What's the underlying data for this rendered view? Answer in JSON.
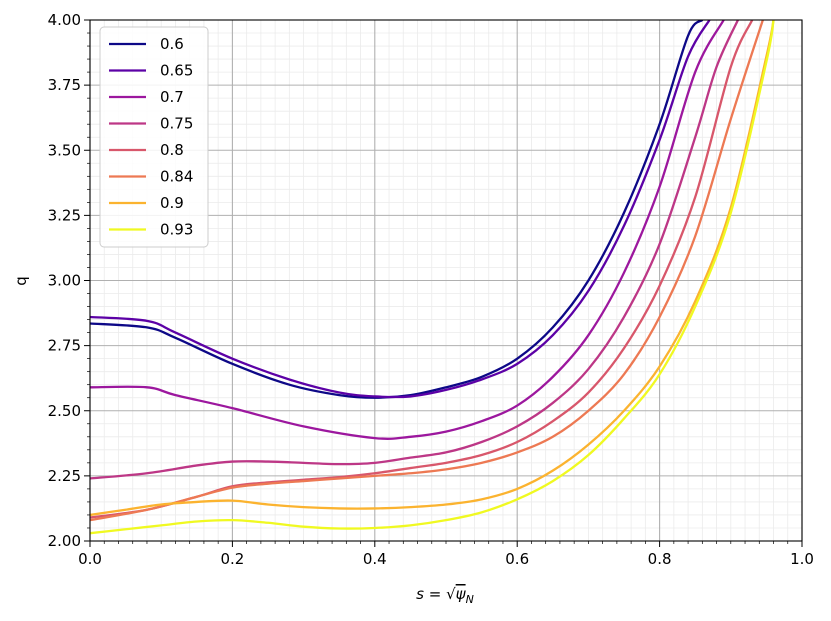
{
  "chart_data": {
    "type": "line",
    "xlabel": "s = √ψN",
    "xlabel_parts": {
      "s": "s",
      "eq": " = ",
      "root": "√",
      "psi": "ψ",
      "sub": "N"
    },
    "ylabel": "q",
    "xlim": [
      0.0,
      1.0
    ],
    "ylim": [
      2.0,
      4.0
    ],
    "x_ticks": [
      0.0,
      0.2,
      0.4,
      0.6,
      0.8,
      1.0
    ],
    "x_tick_labels": [
      "0.0",
      "0.2",
      "0.4",
      "0.6",
      "0.8",
      "1.0"
    ],
    "y_ticks": [
      2.0,
      2.25,
      2.5,
      2.75,
      3.0,
      3.25,
      3.5,
      3.75,
      4.0
    ],
    "y_tick_labels": [
      "2.00",
      "2.25",
      "2.50",
      "2.75",
      "3.00",
      "3.25",
      "3.50",
      "3.75",
      "4.00"
    ],
    "grid": "major and minor",
    "legend_position": "top-left",
    "series": [
      {
        "name": "0.6",
        "color": "#0d0887",
        "x": [
          0,
          0.08,
          0.12,
          0.2,
          0.28,
          0.35,
          0.4,
          0.45,
          0.5,
          0.55,
          0.6,
          0.65,
          0.7,
          0.75,
          0.8,
          0.84,
          0.86
        ],
        "y": [
          2.835,
          2.82,
          2.78,
          2.68,
          2.6,
          2.56,
          2.55,
          2.56,
          2.59,
          2.63,
          2.7,
          2.82,
          3.0,
          3.26,
          3.6,
          3.94,
          4.0
        ]
      },
      {
        "name": "0.65",
        "color": "#5c01a6",
        "x": [
          0,
          0.08,
          0.12,
          0.2,
          0.28,
          0.35,
          0.4,
          0.45,
          0.5,
          0.55,
          0.6,
          0.65,
          0.7,
          0.75,
          0.8,
          0.84,
          0.87
        ],
        "y": [
          2.86,
          2.845,
          2.8,
          2.7,
          2.62,
          2.57,
          2.555,
          2.555,
          2.58,
          2.62,
          2.68,
          2.79,
          2.96,
          3.21,
          3.54,
          3.86,
          4.0
        ]
      },
      {
        "name": "0.7",
        "color": "#9c179e",
        "x": [
          0,
          0.08,
          0.12,
          0.2,
          0.3,
          0.4,
          0.45,
          0.5,
          0.55,
          0.6,
          0.65,
          0.7,
          0.75,
          0.8,
          0.85,
          0.89
        ],
        "y": [
          2.59,
          2.59,
          2.56,
          2.51,
          2.44,
          2.395,
          2.4,
          2.42,
          2.46,
          2.52,
          2.63,
          2.79,
          3.03,
          3.36,
          3.8,
          4.0
        ]
      },
      {
        "name": "0.75",
        "color": "#bd3786",
        "x": [
          0,
          0.08,
          0.15,
          0.2,
          0.25,
          0.3,
          0.35,
          0.4,
          0.45,
          0.5,
          0.55,
          0.6,
          0.65,
          0.7,
          0.75,
          0.8,
          0.85,
          0.88,
          0.91
        ],
        "y": [
          2.24,
          2.26,
          2.29,
          2.305,
          2.305,
          2.3,
          2.295,
          2.3,
          2.32,
          2.34,
          2.38,
          2.44,
          2.53,
          2.66,
          2.86,
          3.14,
          3.55,
          3.82,
          4.0
        ]
      },
      {
        "name": "0.8",
        "color": "#d8576b",
        "x": [
          0,
          0.08,
          0.15,
          0.2,
          0.25,
          0.3,
          0.35,
          0.4,
          0.45,
          0.5,
          0.55,
          0.6,
          0.65,
          0.7,
          0.75,
          0.8,
          0.85,
          0.9,
          0.93
        ],
        "y": [
          2.09,
          2.12,
          2.17,
          2.21,
          2.225,
          2.235,
          2.245,
          2.26,
          2.28,
          2.3,
          2.33,
          2.38,
          2.46,
          2.57,
          2.74,
          2.98,
          3.32,
          3.82,
          4.0
        ]
      },
      {
        "name": "0.84",
        "color": "#ed7953",
        "x": [
          0,
          0.08,
          0.15,
          0.2,
          0.25,
          0.3,
          0.35,
          0.4,
          0.45,
          0.5,
          0.55,
          0.6,
          0.65,
          0.7,
          0.75,
          0.8,
          0.85,
          0.9,
          0.945
        ],
        "y": [
          2.08,
          2.12,
          2.17,
          2.205,
          2.22,
          2.23,
          2.24,
          2.25,
          2.26,
          2.275,
          2.3,
          2.34,
          2.4,
          2.5,
          2.64,
          2.86,
          3.17,
          3.62,
          4.0
        ]
      },
      {
        "name": "0.9",
        "color": "#fbb32f",
        "x": [
          0,
          0.05,
          0.1,
          0.15,
          0.2,
          0.25,
          0.3,
          0.35,
          0.4,
          0.45,
          0.5,
          0.55,
          0.6,
          0.65,
          0.7,
          0.75,
          0.8,
          0.85,
          0.9,
          0.95,
          0.96
        ],
        "y": [
          2.1,
          2.12,
          2.14,
          2.15,
          2.155,
          2.14,
          2.13,
          2.125,
          2.125,
          2.13,
          2.14,
          2.16,
          2.2,
          2.27,
          2.37,
          2.5,
          2.67,
          2.92,
          3.28,
          3.86,
          4.0
        ]
      },
      {
        "name": "0.93",
        "color": "#f0f921",
        "x": [
          0,
          0.05,
          0.1,
          0.15,
          0.2,
          0.25,
          0.3,
          0.35,
          0.4,
          0.45,
          0.5,
          0.55,
          0.6,
          0.65,
          0.7,
          0.75,
          0.8,
          0.85,
          0.9,
          0.95,
          0.96
        ],
        "y": [
          2.03,
          2.045,
          2.06,
          2.075,
          2.08,
          2.07,
          2.055,
          2.048,
          2.05,
          2.06,
          2.08,
          2.11,
          2.16,
          2.23,
          2.33,
          2.47,
          2.64,
          2.9,
          3.26,
          3.84,
          4.0
        ]
      }
    ]
  }
}
